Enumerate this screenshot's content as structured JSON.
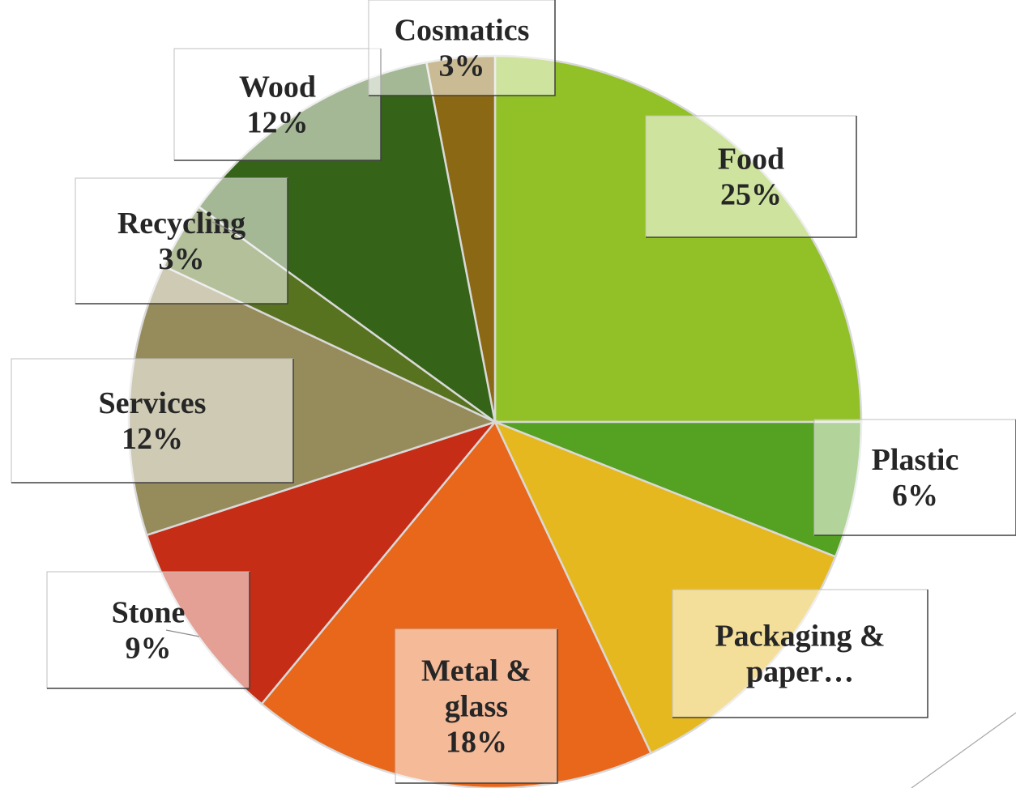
{
  "chart_data": {
    "type": "pie",
    "title": "",
    "legend": "none",
    "slices": [
      {
        "category": "Food",
        "label": [
          "Food",
          "25%"
        ],
        "value": 25,
        "color": "#92c127"
      },
      {
        "category": "Plastic",
        "label": [
          "Plastic",
          "6%"
        ],
        "value": 6,
        "color": "#55a121"
      },
      {
        "category": "Packaging & paper",
        "label": [
          "Packaging &",
          "paper…"
        ],
        "value": 12,
        "color": "#e6b820"
      },
      {
        "category": "Metal & glass",
        "label": [
          "Metal &",
          "glass",
          "18%"
        ],
        "value": 18,
        "color": "#e8671b"
      },
      {
        "category": "Stone",
        "label": [
          "Stone",
          "9%"
        ],
        "value": 9,
        "color": "#c52d17"
      },
      {
        "category": "Services",
        "label": [
          "Services",
          "12%"
        ],
        "value": 12,
        "color": "#968b5a"
      },
      {
        "category": "Recycling",
        "label": [
          "Recycling",
          "3%"
        ],
        "value": 3,
        "color": "#57731f"
      },
      {
        "category": "Wood",
        "label": [
          "Wood",
          "12%"
        ],
        "value": 12,
        "color": "#356318"
      },
      {
        "category": "Cosmatics",
        "label": [
          "Cosmatics",
          "3%"
        ],
        "value": 3,
        "color": "#8b6914"
      }
    ]
  }
}
